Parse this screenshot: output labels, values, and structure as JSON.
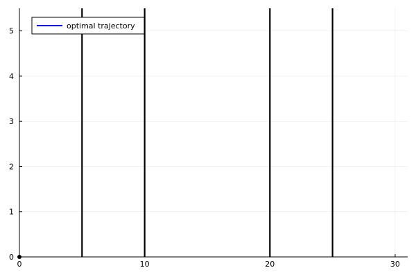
{
  "chart_data": {
    "type": "line",
    "title": "",
    "xlabel": "",
    "ylabel": "",
    "xlim": [
      0,
      31
    ],
    "ylim": [
      0,
      5.5
    ],
    "x_ticks": [
      0,
      10,
      20,
      30
    ],
    "y_ticks": [
      0,
      1,
      2,
      3,
      4,
      5
    ],
    "x_tick_labels": [
      "0",
      "10",
      "20",
      "30"
    ],
    "y_tick_labels": [
      "0",
      "1",
      "2",
      "3",
      "4",
      "5"
    ],
    "grid": true,
    "legend": {
      "position": "top-left",
      "entries": [
        "optimal trajectory"
      ]
    },
    "series": [
      {
        "name": "optimal trajectory",
        "color": "#0000ff",
        "x": [
          0
        ],
        "y": [
          0
        ]
      }
    ],
    "vertical_lines": [
      {
        "x": 5,
        "color": "#000000"
      },
      {
        "x": 10,
        "color": "#000000"
      },
      {
        "x": 20,
        "color": "#000000"
      },
      {
        "x": 25,
        "color": "#000000"
      }
    ],
    "points": [
      {
        "x": 0,
        "y": 0,
        "color": "#000000"
      }
    ]
  }
}
